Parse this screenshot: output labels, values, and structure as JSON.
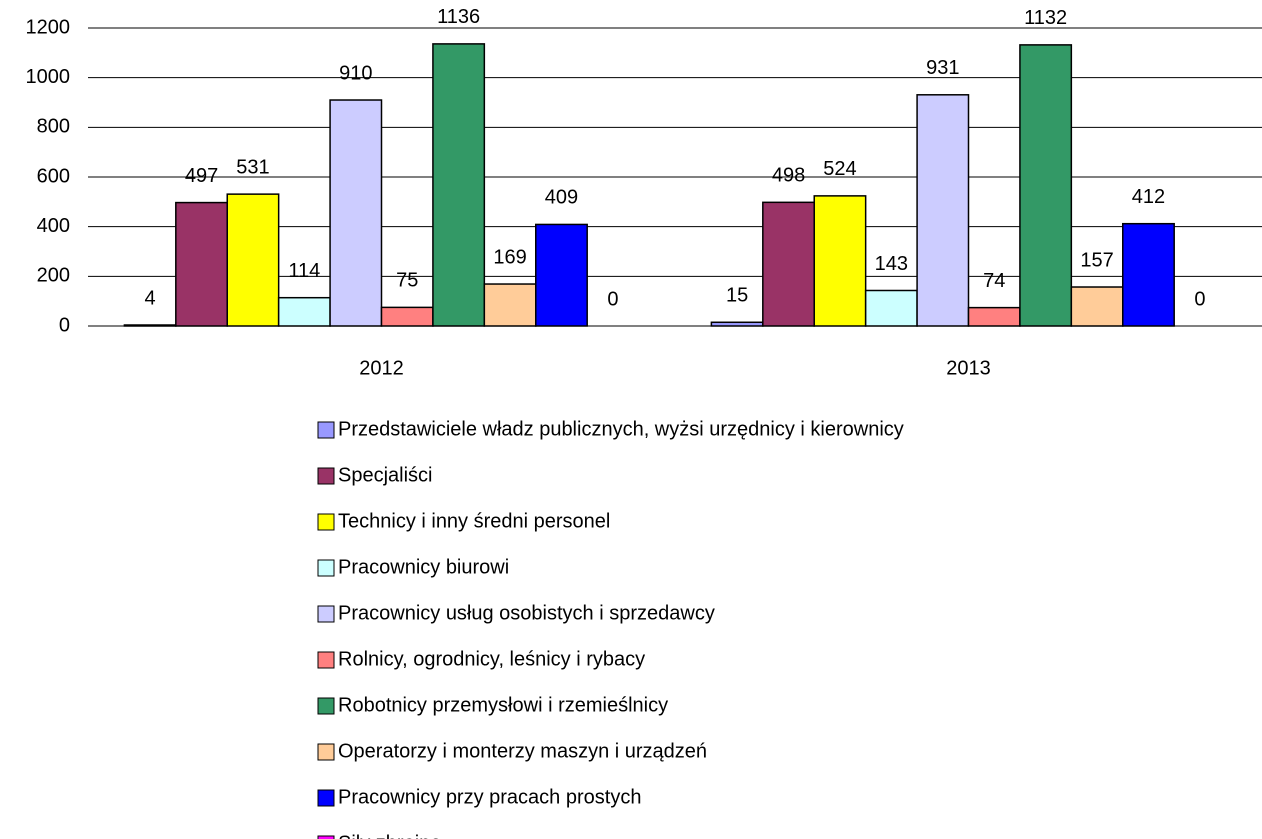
{
  "chart_data": {
    "type": "bar",
    "categories": [
      "2012",
      "2013"
    ],
    "series": [
      {
        "name": "Przedstawiciele władz publicznych, wyżsi urzędnicy i kierownicy",
        "color": "#9999ff",
        "values": [
          4,
          15
        ]
      },
      {
        "name": "Specjaliści",
        "color": "#993366",
        "values": [
          497,
          498
        ]
      },
      {
        "name": "Technicy i inny średni personel",
        "color": "#ffff00",
        "values": [
          531,
          524
        ]
      },
      {
        "name": "Pracownicy biurowi",
        "color": "#ccffff",
        "values": [
          114,
          143
        ]
      },
      {
        "name": "Pracownicy usług osobistych i sprzedawcy",
        "color": "#ccccff",
        "values": [
          910,
          931
        ]
      },
      {
        "name": "Rolnicy, ogrodnicy, leśnicy i rybacy",
        "color": "#ff8080",
        "values": [
          75,
          74
        ]
      },
      {
        "name": "Robotnicy przemysłowi i rzemieślnicy",
        "color": "#339966",
        "values": [
          1136,
          1132
        ]
      },
      {
        "name": "Operatorzy i monterzy maszyn i urządzeń",
        "color": "#ffcc99",
        "values": [
          169,
          157
        ]
      },
      {
        "name": "Pracownicy przy pracach prostych",
        "color": "#0000ff",
        "values": [
          409,
          412
        ]
      },
      {
        "name": "Siły zbrojne",
        "color": "#ff00ff",
        "values": [
          0,
          0
        ]
      }
    ],
    "ylim": [
      0,
      1200
    ],
    "yticks": [
      0,
      200,
      400,
      600,
      800,
      1000,
      1200
    ],
    "grid": true,
    "legend": "bottom"
  }
}
